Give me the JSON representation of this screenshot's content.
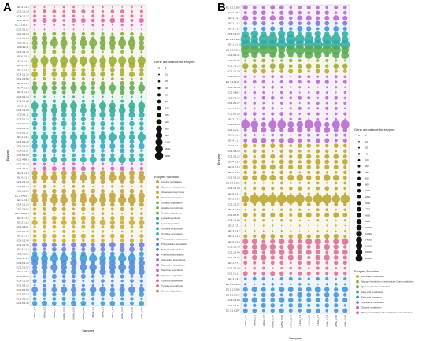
{
  "panels": [
    {
      "letter": "A",
      "x_axis_title": "Samples",
      "y_axis_title": "Enzyme",
      "size_legend_title": "Gene abundance for enzyme",
      "size_legend_values": [
        "1",
        "10",
        "20",
        "40",
        "60",
        "80",
        "100",
        "200",
        "400",
        "600",
        "800",
        "1000",
        "2000",
        "3000"
      ],
      "function_legend_title": "Enzyme Function",
      "functions": [
        {
          "name": "Arginine degradation",
          "color": "#b8a22a"
        },
        {
          "name": "Cadaverine biosynthesis",
          "color": "#c0a035"
        },
        {
          "name": "Glutamate biosynthesis",
          "color": "#c8a830"
        },
        {
          "name": "Glutamine biosynthesis",
          "color": "#a8a82a"
        },
        {
          "name": "Glutamic degradation",
          "color": "#96aa2e"
        },
        {
          "name": "Histidine biosynthesis",
          "color": "#7aa83a"
        },
        {
          "name": "Histidine degradation",
          "color": "#56a850"
        },
        {
          "name": "Lysine biosynthesis",
          "color": "#3aa870"
        },
        {
          "name": "Lysine degradation",
          "color": "#2ea88c"
        },
        {
          "name": "Ornithine biosynthesis",
          "color": "#2eaaa8"
        },
        {
          "name": "Ornithine degradation",
          "color": "#30a4c0"
        },
        {
          "name": "Phenylalanine biosynthesis",
          "color": "#3a96d0"
        },
        {
          "name": "Phenylalanine degradation",
          "color": "#4a86d8"
        },
        {
          "name": "Putrescine biosynthesis",
          "color": "#6a78d8"
        },
        {
          "name": "Putrescine degradation",
          "color": "#8a6ed6"
        },
        {
          "name": "Spermidine biosynthesis",
          "color": "#a466d2"
        },
        {
          "name": "Spermidine degradation",
          "color": "#bc60c8"
        },
        {
          "name": "Spermine biosynthesis",
          "color": "#cc5eb8"
        },
        {
          "name": "Spermine degradation",
          "color": "#d660a4"
        },
        {
          "name": "Tyramine biosynthesis",
          "color": "#dc6690"
        },
        {
          "name": "Tyrosine biosynthesis",
          "color": "#de6e7c"
        },
        {
          "name": "Tyrosine degradation",
          "color": "#da7868"
        }
      ],
      "samples": [
        "HBAla_D1",
        "HBAla_D3",
        "HBAla_D7",
        "HBAla_D14",
        "HBAla_D30",
        "HBAla_D60",
        "LBAla_D1",
        "LBAla_D3",
        "LBAla_D7",
        "LBAla_D14",
        "LBAla_D30",
        "LBAla_D60"
      ],
      "enzymes": [
        "EC 3.5.3.6",
        "EC 2.1.1.10",
        "EC 4.1.1.17",
        "EC 1.1.1.11",
        "EC 1.13.11.7",
        "EC 2.3.1.17",
        "EC 2.3.1.18",
        "EC 2.3.1.99",
        "EC 6.3.1.11",
        "EC 6.3.2.11",
        "EC 1.4.1.13",
        "EC 6.3.5.5",
        "EC 1.5.1.2",
        "EC 2.1.3.3",
        "EC 1.4.1.3",
        "EC 4.1.1.15",
        "EC 1.2.1.88",
        "EC 2.6.1.9",
        "EC 4.3.1.3",
        "EC 3.5.1.9",
        "EC 2.6.1.13",
        "EC 4.2.1.49",
        "EC 2.1.2.5",
        "EC 4.1.1.28",
        "EC 2.6.1.11",
        "EC 3.5.1.16",
        "EC 2.3.1.35",
        "EC 3.5.1.14",
        "EC 2.6.1.57",
        "EC 1.4.3.5",
        "EC 2.6.1.44",
        "EC 1.3.1.12",
        "EC 4.2.1.51",
        "EC 2.5.1.54",
        "EC 5.4.99.5",
        "EC 1.3.1.13",
        "EC 2.7.1.71",
        "EC 4.6.1.3",
        "EC 4.6.1.4",
        "EC 4.2.1.10",
        "EC 2.5.1.19",
        "EC 1.1.1.25",
        "EC 1.14.16.1",
        "EC 1.3.3.8",
        "EC 4.1.1.25",
        "EC 4.3.1.24",
        "EC 1.13.11.5",
        "EC 3.7.1.2",
        "EC 2.6.1.5",
        "EC 1.4.3.21",
        "EC 2.6.1.42",
        "EC 1.2.1.5",
        "EC 4.1.1.43",
        "EC 1.2.1.39",
        "EC 3.5.1.4",
        "EC 2.6.1.58",
        "EC 1.11.1.5",
        "EC 4.2.1.13",
        "EC 1.1.1.37",
        "EC 1.4.3.4",
        "EC 2.5.1.16",
        "EC 4.1.1.50",
        "EC 1.5.3.13",
        "EC 3.5.1.53",
        "EC 3.5.3.12",
        "EC 2.3.2.25",
        "EC 1.5.1.43"
      ],
      "groups": [
        {
          "index": 0,
          "rows": [
            0,
            1,
            2
          ],
          "kind": "mixed"
        },
        {
          "index": 5,
          "rows": [
            3,
            4,
            5,
            6,
            7,
            8
          ],
          "kind": "mixed"
        },
        {
          "index": 8,
          "rows": [
            9,
            10,
            11,
            12,
            13,
            14
          ],
          "kind": "mixed"
        },
        {
          "index": 11,
          "rows": [
            15,
            16,
            17,
            18,
            19,
            20,
            21
          ],
          "kind": "mixed"
        }
      ]
    },
    {
      "letter": "B",
      "x_axis_title": "Samples",
      "y_axis_title": "Enzyme",
      "size_legend_title": "Gene abundance for enzyme",
      "size_legend_values": [
        "1",
        "10",
        "20",
        "40",
        "100",
        "200",
        "400",
        "600",
        "800",
        "1000",
        "2000",
        "3000",
        "4000",
        "6000",
        "8000",
        "10,000",
        "12,000",
        "14,000",
        "16,000",
        "18,000",
        "20,000"
      ],
      "function_legend_title": "Enzyme Function",
      "functions": [
        {
          "name": "Amino acid metabolism",
          "color": "#b9a22c"
        },
        {
          "name": "Nitrogen Metabolism Carbohydrate Chain metabolism",
          "color": "#9aa82c"
        },
        {
          "name": "Quinone & 2-iron metabolism",
          "color": "#56a84c"
        },
        {
          "name": "Fatty acid metabolism",
          "color": "#2eaaa0"
        },
        {
          "name": "Fatty acid elongation",
          "color": "#3c8fd4"
        },
        {
          "name": "Lysine acid metabolism",
          "color": "#7b74d6"
        },
        {
          "name": "Glycerol metabolism",
          "color": "#b364cc"
        },
        {
          "name": "Phenylacetaldehyde-Phenylethylalcohol metabolism",
          "color": "#d66c8c"
        }
      ],
      "samples": [
        "HBAla_D1",
        "HBAla_D3",
        "HBAla_D7",
        "HBAla_D14",
        "HBAla_D30",
        "HBAla_D60",
        "LBAla_D1",
        "LBAla_D3",
        "LBAla_D7",
        "LBAla_D14",
        "LBAla_D30",
        "LBAla_D60"
      ],
      "enzymes": [
        "EC 1.1.1.283",
        "EC 1.6.5.4",
        "EC 1.1.1.1",
        "EC 1.1.1.2",
        "EC 3.1.1.1",
        "EC 3.1.2.22",
        "EC 2.3.1.180",
        "EC 1.3.1.9",
        "EC 1.1.1.100",
        "EC 2.3.1.41",
        "EC 2.3.1.86",
        "EC 2.7.1.16",
        "EC 1.1.1.79",
        "EC 1.1.1.35",
        "EC 4.1.99.21",
        "EC 2.3.1.16",
        "EC 1.3.99.2",
        "EC 2.7.1.17",
        "EC 4.2.1.17",
        "EC 1.2.1.3",
        "EC 1.5.1.34",
        "EC 3.1.2.2",
        "EC 1.2.1.10",
        "EC 1.16.1.1",
        "EC 1.1.1.6",
        "EC 4.1.1.1",
        "EC 2.3.3.1",
        "EC 2.3.3.13",
        "EC 2.3.1.12",
        "EC 4.2.1.3",
        "EC 2.3.1.9",
        "EC 2.8.3.5",
        "EC 2.3.1.20",
        "EC 2.3.1.158",
        "EC 1.1.1.30",
        "EC 2.6.1.1",
        "EC 2.6.1.2",
        "EC 1.1.1.27",
        "EC 1.2.1.5",
        "EC 1.2.1.51",
        "EC 4.1.1.49",
        "EC 2.7.2.1",
        "EC 1.4.1.2",
        "EC 1.4.1.4",
        "EC 2.3.1.8",
        "EC 1.1.1.38",
        "EC 1.1.1.40",
        "EC 1.1.1.95",
        "EC 1.2.7.1",
        "EC 2.3.1.54",
        "EC 1.15.1.1",
        "EC 1.2.4.1",
        "EC 1.1.1.258",
        "EC 1.1.1.284",
        "EC 1.1.1.260",
        "EC 1.1.1.90",
        "EC 1.1.1.91",
        "EC 1.1.1.287"
      ],
      "groups": []
    }
  ],
  "chart_data": [
    {
      "type": "scatter",
      "subtype": "bubble-matrix",
      "panel": "A",
      "xlabel": "Samples",
      "ylabel": "Enzyme",
      "x": [
        "HBAla_D1",
        "HBAla_D3",
        "HBAla_D7",
        "HBAla_D14",
        "HBAla_D30",
        "HBAla_D60",
        "LBAla_D1",
        "LBAla_D3",
        "LBAla_D7",
        "LBAla_D14",
        "LBAla_D30",
        "LBAla_D60"
      ],
      "row_count": 67,
      "row_color_index": [
        19,
        19,
        19,
        18,
        18,
        18,
        5,
        5,
        5,
        5,
        4,
        4,
        4,
        3,
        3,
        3,
        4,
        5,
        6,
        6,
        7,
        8,
        8,
        8,
        9,
        9,
        9,
        9,
        9,
        9,
        10,
        10,
        10,
        9,
        9,
        17,
        17,
        1,
        1,
        1,
        1,
        1,
        1,
        1,
        1,
        1,
        1,
        2,
        2,
        2,
        2,
        2,
        2,
        13,
        13,
        11,
        11,
        12,
        12,
        12,
        12,
        12,
        12,
        12,
        11,
        11,
        11
      ],
      "row_scale": [
        0.3,
        0.5,
        0.4,
        0.6,
        0.3,
        0.2,
        0.5,
        0.7,
        1.0,
        0.6,
        0.5,
        0.3,
        1.4,
        0.7,
        0.5,
        0.8,
        0.4,
        0.6,
        0.8,
        0.5,
        0.3,
        0.4,
        0.9,
        0.8,
        0.7,
        0.6,
        0.7,
        0.6,
        0.5,
        0.9,
        0.7,
        0.8,
        0.6,
        0.5,
        0.8,
        0.4,
        0.6,
        0.7,
        0.9,
        0.5,
        0.4,
        0.6,
        0.8,
        1.0,
        0.5,
        0.6,
        0.4,
        0.6,
        0.7,
        0.5,
        0.4,
        0.6,
        0.5,
        0.7,
        0.6,
        0.7,
        1.2,
        0.8,
        0.9,
        0.7,
        0.6,
        0.5,
        0.4,
        0.8,
        0.6,
        0.5,
        0.7
      ],
      "legend_color_order": [
        "Arginine degradation",
        "Cadaverine biosynthesis",
        "Glutamate biosynthesis",
        "Glutamine biosynthesis",
        "Glutamic degradation",
        "Histidine biosynthesis",
        "Histidine degradation",
        "Lysine biosynthesis",
        "Lysine degradation",
        "Ornithine biosynthesis",
        "Ornithine degradation",
        "Phenylalanine biosynthesis",
        "Phenylalanine degradation",
        "Putrescine biosynthesis",
        "Putrescine degradation",
        "Spermidine biosynthesis",
        "Spermidine degradation",
        "Spermine biosynthesis",
        "Spermine degradation",
        "Tyramine biosynthesis",
        "Tyrosine biosynthesis",
        "Tyrosine degradation"
      ]
    },
    {
      "type": "scatter",
      "subtype": "bubble-matrix",
      "panel": "B",
      "xlabel": "Samples",
      "ylabel": "Enzyme",
      "x": [
        "HBAla_D1",
        "HBAla_D3",
        "HBAla_D7",
        "HBAla_D14",
        "HBAla_D30",
        "HBAla_D60",
        "LBAla_D1",
        "LBAla_D3",
        "LBAla_D7",
        "LBAla_D14",
        "LBAla_D30",
        "LBAla_D60"
      ],
      "row_count": 58,
      "row_color_index": [
        6,
        6,
        6,
        5,
        4,
        3,
        3,
        3,
        2,
        2,
        1,
        1,
        0,
        6,
        6,
        6,
        6,
        6,
        6,
        6,
        6,
        6,
        6,
        6,
        6,
        6,
        0,
        0,
        0,
        0,
        0,
        0,
        0,
        0,
        0,
        0,
        0,
        0,
        0,
        0,
        0,
        0,
        0,
        0,
        7,
        7,
        7,
        7,
        7,
        7,
        7,
        4,
        4,
        4,
        4,
        4,
        4,
        4
      ],
      "row_scale": [
        0.5,
        0.5,
        0.6,
        0.5,
        0.5,
        0.8,
        1.2,
        1.4,
        1.3,
        0.7,
        0.4,
        0.6,
        0.5,
        0.3,
        0.4,
        0.3,
        0.3,
        0.4,
        0.3,
        0.3,
        0.4,
        0.3,
        0.9,
        0.6,
        0.3,
        0.6,
        0.5,
        0.4,
        0.5,
        0.5,
        0.6,
        0.4,
        0.7,
        0.3,
        0.4,
        0.3,
        1.3,
        0.4,
        0.3,
        0.5,
        0.3,
        0.2,
        0.2,
        0.5,
        0.6,
        0.7,
        0.6,
        0.6,
        0.4,
        0.3,
        0.5,
        0.4,
        0.3,
        0.6,
        0.5,
        0.6,
        0.5,
        0.5
      ],
      "legend_color_order": [
        "Amino acid metabolism",
        "Nitrogen Metabolism Carbohydrate Chain metabolism",
        "Quinone & 2-iron metabolism",
        "Fatty acid metabolism",
        "Fatty acid elongation",
        "Lysine acid metabolism",
        "Glycerol metabolism",
        "Phenylacetaldehyde-Phenylethylalcohol metabolism"
      ]
    }
  ]
}
